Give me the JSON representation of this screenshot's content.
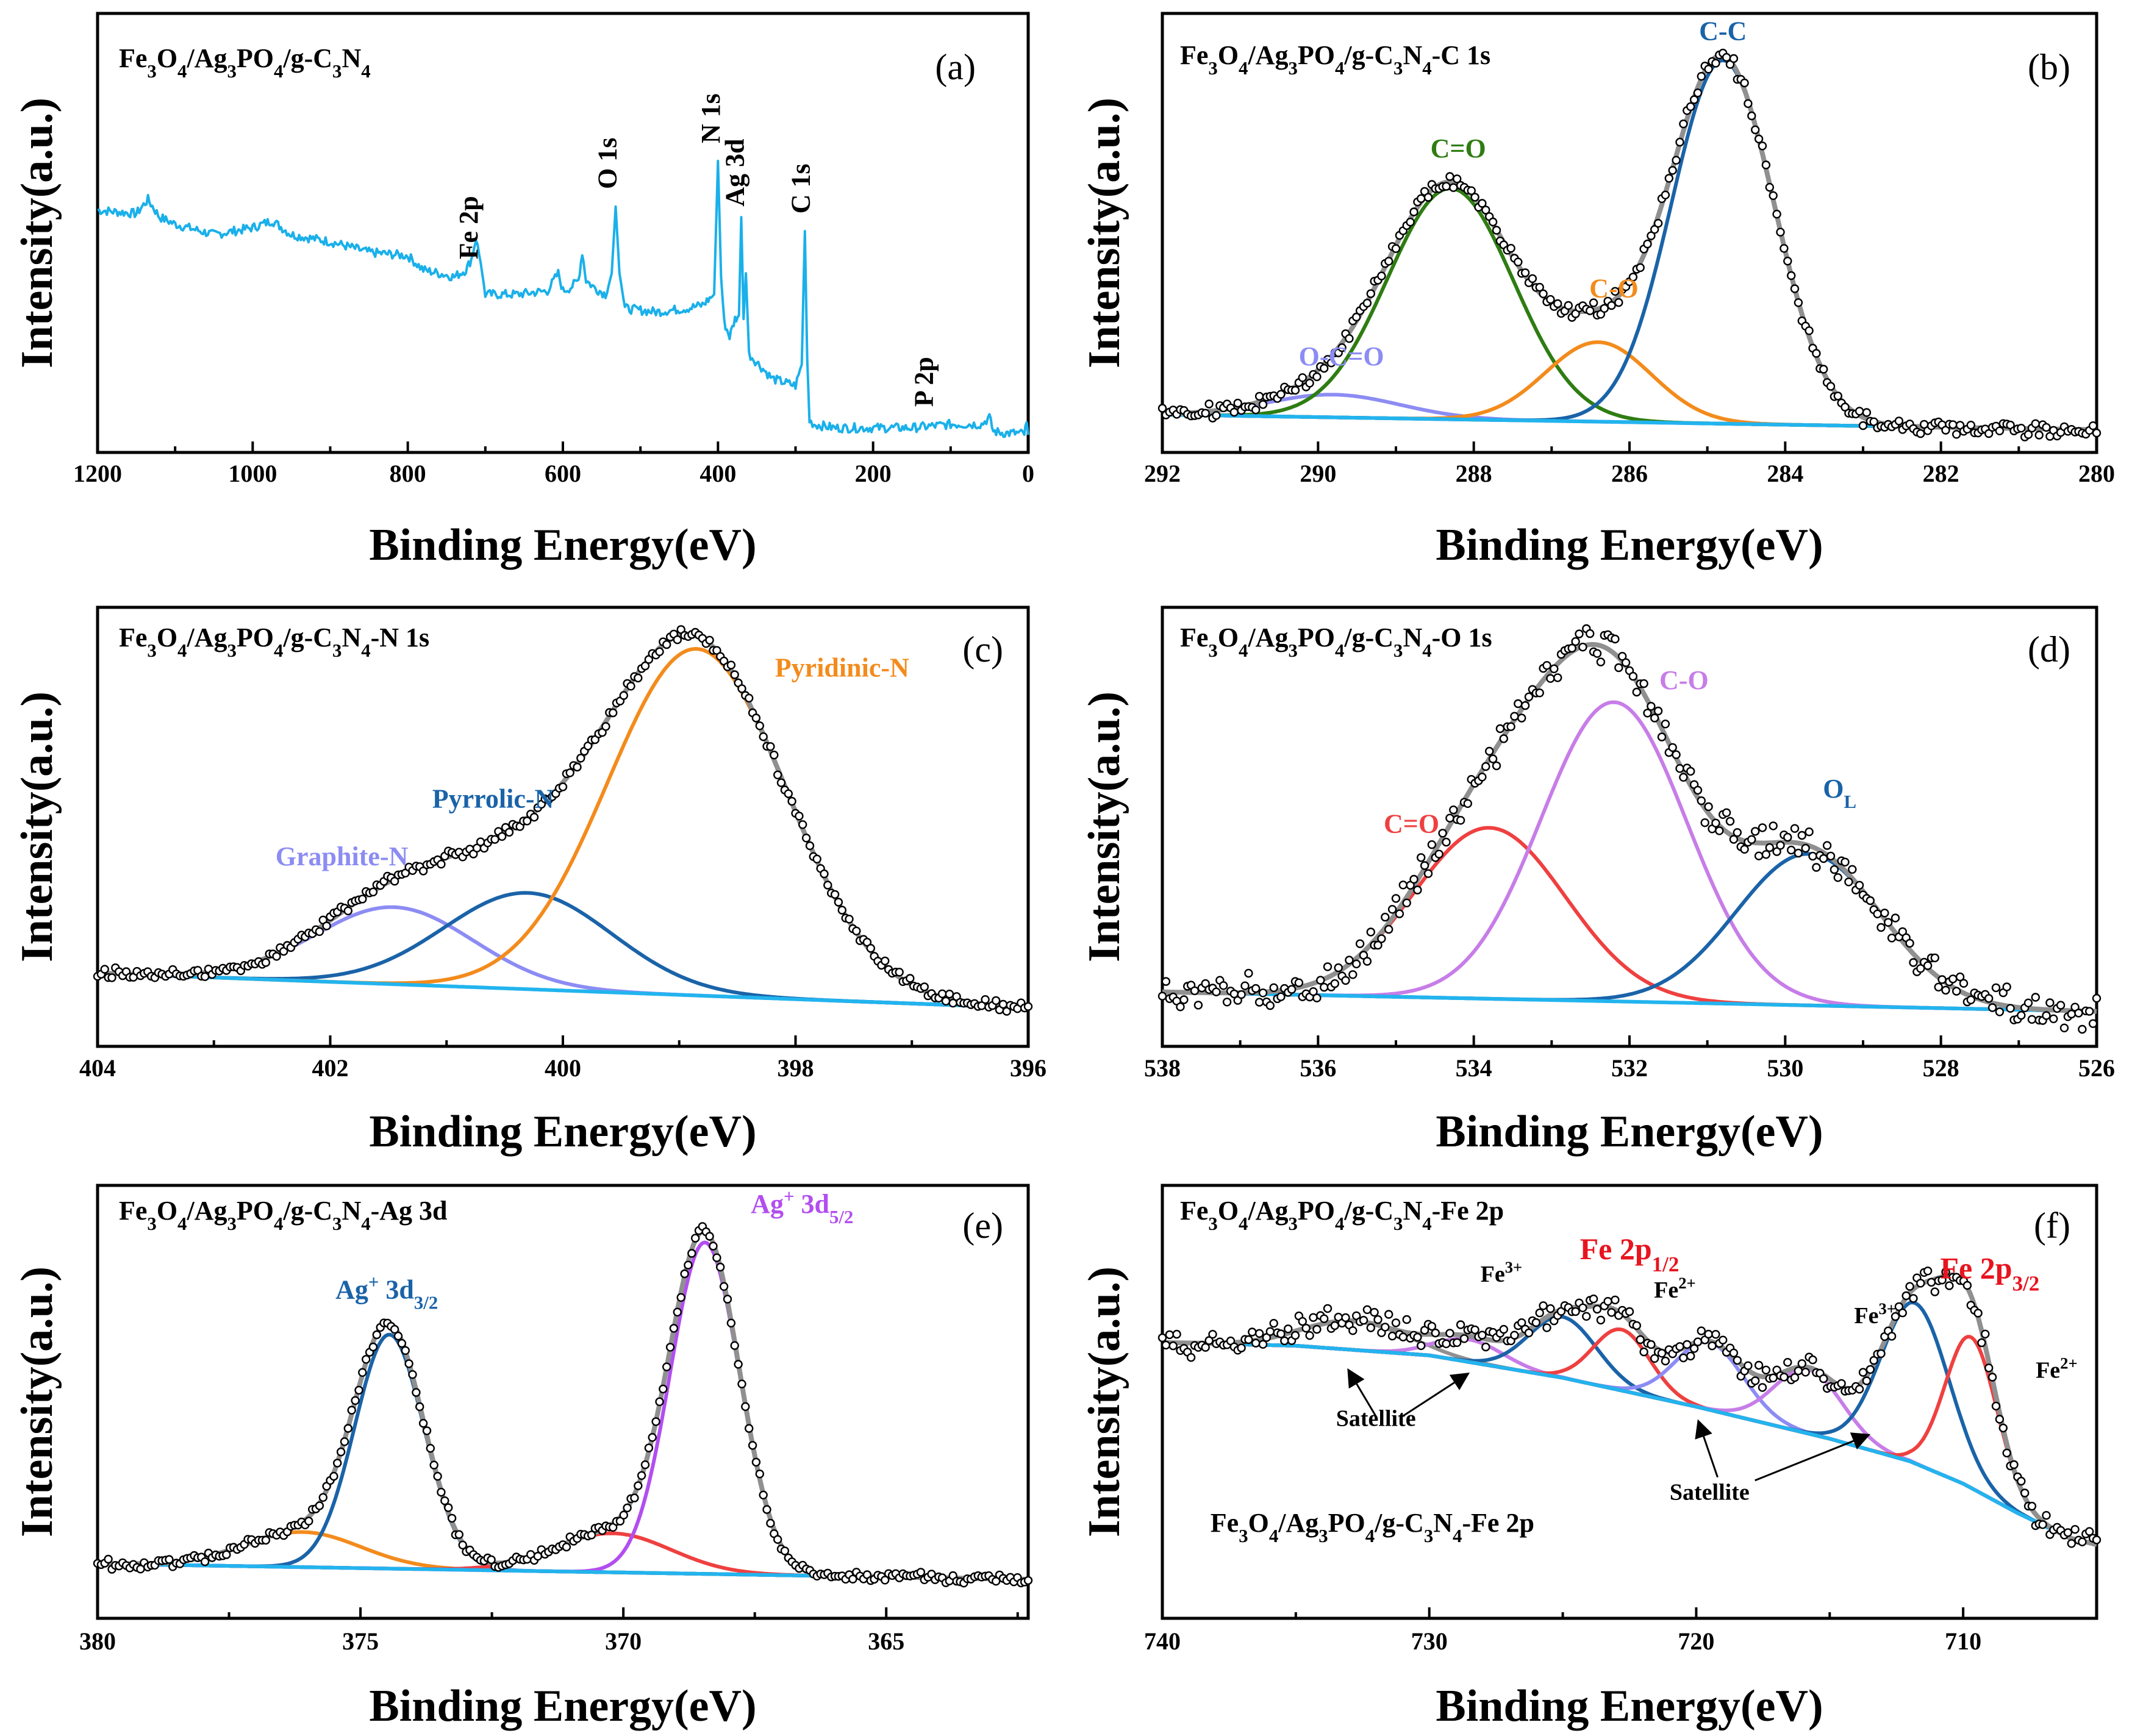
{
  "figure": {
    "x_axis_label": "Binding Energy(eV)",
    "y_axis_label": "Intensity(a.u.)"
  },
  "colors": {
    "survey": "#1ab0ea",
    "background": "#22b4ee",
    "envelope": "#909090",
    "green": "#2e7d12",
    "blue": "#1a63a8",
    "orange": "#f38b1c",
    "lavender": "#8c8cf4",
    "violet": "#c77de8",
    "red": "#ef4040",
    "magenta": "#b24ef0",
    "redtext": "#e8141e"
  },
  "chart_data": [
    {
      "type": "line",
      "panel_letter": "(a)",
      "title": {
        "parts": [
          [
            "Fe",
            ""
          ],
          [
            "3",
            "sub"
          ],
          [
            "O",
            ""
          ],
          [
            "4",
            "sub"
          ],
          [
            "/Ag",
            ""
          ],
          [
            "3",
            "sub"
          ],
          [
            "PO",
            ""
          ],
          [
            "4",
            "sub"
          ],
          [
            "/g-C",
            ""
          ],
          [
            "3",
            "sub"
          ],
          [
            "N",
            ""
          ],
          [
            "4",
            "sub"
          ]
        ]
      },
      "xlabel": "Binding Energy(eV)",
      "ylabel": "Intensity(a.u.)",
      "xlim": [
        1200,
        0
      ],
      "ylim": [
        0,
        100
      ],
      "reversed_x": true,
      "xticks": [
        1200,
        1000,
        800,
        600,
        400,
        200,
        0
      ],
      "series": [
        {
          "name": "Survey",
          "color_key": "survey",
          "role": "line",
          "x": [
            1200,
            1150,
            1135,
            1120,
            1100,
            1050,
            1000,
            975,
            950,
            900,
            850,
            800,
            780,
            760,
            740,
            725,
            718,
            712,
            706,
            700,
            660,
            620,
            606,
            600,
            590,
            580,
            575,
            570,
            560,
            545,
            537,
            532,
            527,
            520,
            480,
            440,
            420,
            405,
            400,
            396,
            392,
            385,
            378,
            373,
            370,
            367,
            364,
            360,
            330,
            300,
            292,
            288,
            285,
            282,
            276,
            250,
            200,
            150,
            100,
            60,
            50,
            45,
            30,
            15,
            5,
            2,
            0
          ],
          "y": [
            64,
            63,
            67,
            62,
            60,
            57,
            59,
            61,
            57,
            55,
            52,
            51,
            47,
            46,
            45,
            47,
            50,
            56,
            49,
            40,
            40,
            41,
            46,
            41,
            42,
            44,
            52,
            44,
            42,
            40,
            46,
            65,
            46,
            36,
            35,
            36,
            37,
            40,
            78,
            45,
            32,
            28,
            33,
            34,
            62,
            33,
            46,
            23,
            16,
            14,
            20,
            58,
            22,
            4,
            3,
            2,
            2,
            2,
            3,
            3,
            5,
            1,
            0.5,
            0.5,
            0.3,
            3,
            0
          ]
        }
      ],
      "annotations": [
        {
          "text": "Fe 2p",
          "x": 710,
          "y": 50,
          "rotate": -90,
          "color_key": "none"
        },
        {
          "text": "O 1s",
          "x": 531,
          "y": 70,
          "rotate": -90,
          "color_key": "none"
        },
        {
          "text": "N 1s",
          "x": 398,
          "y": 83,
          "rotate": -90,
          "color_key": "none"
        },
        {
          "text": "Ag 3d",
          "x": 367,
          "y": 65,
          "rotate": -90,
          "color_key": "none"
        },
        {
          "text": "C 1s",
          "x": 282,
          "y": 63,
          "rotate": -90,
          "color_key": "none"
        },
        {
          "text": "P 2p",
          "x": 123,
          "y": 8,
          "rotate": -90,
          "color_key": "none"
        }
      ]
    },
    {
      "type": "line",
      "panel_letter": "(b)",
      "title": {
        "parts": [
          [
            "Fe",
            ""
          ],
          [
            "3",
            "sub"
          ],
          [
            "O",
            ""
          ],
          [
            "4",
            "sub"
          ],
          [
            "/Ag",
            ""
          ],
          [
            "3",
            "sub"
          ],
          [
            "PO",
            ""
          ],
          [
            "4",
            "sub"
          ],
          [
            "/g-C",
            ""
          ],
          [
            "3",
            "sub"
          ],
          [
            "N",
            ""
          ],
          [
            "4",
            "sub"
          ],
          [
            "-C 1s",
            ""
          ]
        ]
      },
      "xlabel": "Binding Energy(eV)",
      "ylabel": "Intensity(a.u.)",
      "xlim": [
        292,
        280
      ],
      "ylim": [
        0,
        100
      ],
      "reversed_x": true,
      "xticks": [
        292,
        290,
        288,
        286,
        284,
        282,
        280
      ],
      "baseline": {
        "x0": 292,
        "y0": 4,
        "x1": 280,
        "y1": 0
      },
      "peaks": [
        {
          "name": "O-C=O",
          "center": 289.8,
          "fwhm": 2.0,
          "height": 6,
          "color_key": "lavender"
        },
        {
          "name": "C=O",
          "center": 288.3,
          "fwhm": 1.9,
          "height": 61,
          "color_key": "green"
        },
        {
          "name": "C-O",
          "center": 286.4,
          "fwhm": 1.6,
          "height": 21,
          "color_key": "orange"
        },
        {
          "name": "C-C",
          "center": 284.8,
          "fwhm": 1.55,
          "height": 96,
          "color_key": "blue"
        }
      ],
      "envelope_color_key": "envelope",
      "background_color_key": "background",
      "scatter_noise": 1.6,
      "annotations": [
        {
          "text": "O-C=O",
          "x": 289.7,
          "y": 17,
          "color_key": "lavender"
        },
        {
          "text": "C=O",
          "x": 288.2,
          "y": 72,
          "color_key": "green"
        },
        {
          "text": "C-O",
          "x": 286.2,
          "y": 35,
          "color_key": "orange"
        },
        {
          "text": "C-C",
          "x": 284.8,
          "y": 103,
          "color_key": "blue"
        }
      ]
    },
    {
      "type": "line",
      "panel_letter": "(c)",
      "title": {
        "parts": [
          [
            "Fe",
            ""
          ],
          [
            "3",
            "sub"
          ],
          [
            "O",
            ""
          ],
          [
            "4",
            "sub"
          ],
          [
            "/Ag",
            ""
          ],
          [
            "3",
            "sub"
          ],
          [
            "PO",
            ""
          ],
          [
            "4",
            "sub"
          ],
          [
            "/g-C",
            ""
          ],
          [
            "3",
            "sub"
          ],
          [
            "N",
            ""
          ],
          [
            "4",
            "sub"
          ],
          [
            "-N 1s",
            ""
          ]
        ]
      },
      "xlabel": "Binding Energy(eV)",
      "ylabel": "Intensity(a.u.)",
      "xlim": [
        404,
        396
      ],
      "ylim": [
        0,
        100
      ],
      "reversed_x": true,
      "xticks": [
        404,
        402,
        400,
        398,
        396
      ],
      "baseline": {
        "x0": 404,
        "y0": 9,
        "x1": 396,
        "y1": 0
      },
      "peaks": [
        {
          "name": "Graphite-N",
          "center": 401.45,
          "fwhm": 1.6,
          "height": 20,
          "color_key": "lavender"
        },
        {
          "name": "Pyrrolic-N",
          "center": 400.3,
          "fwhm": 1.7,
          "height": 25,
          "color_key": "blue"
        },
        {
          "name": "Pyridinic-N",
          "center": 398.85,
          "fwhm": 1.8,
          "height": 90,
          "color_key": "orange"
        }
      ],
      "envelope_color_key": "envelope",
      "background_color_key": "background",
      "scatter_noise": 1.2,
      "annotations": [
        {
          "text": "Graphite-N",
          "x": 401.9,
          "y": 37,
          "color_key": "lavender"
        },
        {
          "text": "Pyrrolic-N",
          "x": 400.6,
          "y": 52,
          "color_key": "blue"
        },
        {
          "text": "Pyridinic-N",
          "x": 397.6,
          "y": 86,
          "color_key": "orange"
        }
      ]
    },
    {
      "type": "line",
      "panel_letter": "(d)",
      "title": {
        "parts": [
          [
            "Fe",
            ""
          ],
          [
            "3",
            "sub"
          ],
          [
            "O",
            ""
          ],
          [
            "4",
            "sub"
          ],
          [
            "/Ag",
            ""
          ],
          [
            "3",
            "sub"
          ],
          [
            "PO",
            ""
          ],
          [
            "4",
            "sub"
          ],
          [
            "/g-C",
            ""
          ],
          [
            "3",
            "sub"
          ],
          [
            "N",
            ""
          ],
          [
            "4",
            "sub"
          ],
          [
            "-O 1s",
            ""
          ]
        ]
      },
      "xlabel": "Binding Energy(eV)",
      "ylabel": "Intensity(a.u.)",
      "xlim": [
        538,
        526
      ],
      "ylim": [
        0,
        100
      ],
      "reversed_x": true,
      "xticks": [
        538,
        536,
        534,
        532,
        530,
        528,
        526
      ],
      "baseline": {
        "x0": 538,
        "y0": 9,
        "x1": 526,
        "y1": 4
      },
      "peaks": [
        {
          "name": "C=O",
          "center": 533.8,
          "fwhm": 2.3,
          "height": 44,
          "color_key": "red"
        },
        {
          "name": "C-O",
          "center": 532.2,
          "fwhm": 2.2,
          "height": 77,
          "color_key": "violet"
        },
        {
          "name": "O_L",
          "center": 529.7,
          "fwhm": 2.2,
          "height": 39,
          "color_key": "blue"
        }
      ],
      "envelope_color_key": "envelope",
      "background_color_key": "background",
      "scatter_noise": 3.5,
      "annotations": [
        {
          "text": "C=O",
          "x": 534.8,
          "y": 50,
          "color_key": "red"
        },
        {
          "text": "C-O",
          "x": 531.3,
          "y": 87,
          "color_key": "violet"
        },
        {
          "text": "O",
          "sub": "L",
          "x": 529.3,
          "y": 59,
          "color_key": "blue"
        }
      ]
    },
    {
      "type": "line",
      "panel_letter": "(e)",
      "title": {
        "parts": [
          [
            "Fe",
            ""
          ],
          [
            "3",
            "sub"
          ],
          [
            "O",
            ""
          ],
          [
            "4",
            "sub"
          ],
          [
            "/Ag",
            ""
          ],
          [
            "3",
            "sub"
          ],
          [
            "PO",
            ""
          ],
          [
            "4",
            "sub"
          ],
          [
            "/g-C",
            ""
          ],
          [
            "3",
            "sub"
          ],
          [
            "N",
            ""
          ],
          [
            "4",
            "sub"
          ],
          [
            "-Ag 3d",
            ""
          ]
        ]
      },
      "xlabel": "Binding Energy(eV)",
      "ylabel": "Intensity(a.u.)",
      "xlim": [
        380,
        362.3
      ],
      "ylim": [
        0,
        100
      ],
      "reversed_x": true,
      "xticks": [
        380,
        375,
        370,
        365
      ],
      "baseline": {
        "x0": 380,
        "y0": 7,
        "x1": 362.3,
        "y1": 3
      },
      "peaks": [
        {
          "name": "orange-375",
          "center": 376.1,
          "fwhm": 2.6,
          "height": 9,
          "color_key": "orange"
        },
        {
          "name": "Ag+ 3d3/2",
          "center": 374.45,
          "fwhm": 1.55,
          "height": 60,
          "color_key": "blue"
        },
        {
          "name": "red-370",
          "center": 370.2,
          "fwhm": 2.6,
          "height": 10,
          "color_key": "red"
        },
        {
          "name": "Ag+ 3d5/2",
          "center": 368.45,
          "fwhm": 1.55,
          "height": 85,
          "color_key": "magenta"
        }
      ],
      "envelope_color_key": "envelope",
      "background_color_key": "background",
      "scatter_noise": 1.0,
      "annotations": [
        {
          "text": "Ag",
          "sup": "+",
          "text2": " 3d",
          "sub": "3/2",
          "x": 374.5,
          "y": 75,
          "color_key": "blue"
        },
        {
          "text": "Ag",
          "sup": "+",
          "text2": " 3d",
          "sub": "5/2",
          "x": 366.6,
          "y": 97,
          "color_key": "magenta"
        }
      ]
    },
    {
      "type": "line",
      "panel_letter": "(f)",
      "title": {
        "parts": [
          [
            "Fe",
            ""
          ],
          [
            "3",
            "sub"
          ],
          [
            "O",
            ""
          ],
          [
            "4",
            "sub"
          ],
          [
            "/Ag",
            ""
          ],
          [
            "3",
            "sub"
          ],
          [
            "PO",
            ""
          ],
          [
            "4",
            "sub"
          ],
          [
            "/g-C",
            ""
          ],
          [
            "3",
            "sub"
          ],
          [
            "N",
            ""
          ],
          [
            "4",
            "sub"
          ],
          [
            "-Fe 2p",
            ""
          ]
        ]
      },
      "xlabel": "Binding Energy(eV)",
      "ylabel": "Intensity(a.u.)",
      "xlim": [
        740,
        705
      ],
      "ylim": [
        0,
        100
      ],
      "reversed_x": true,
      "xticks": [
        740,
        730,
        720,
        710
      ],
      "background_curve": {
        "x": [
          740,
          735,
          730,
          725,
          720,
          715,
          712,
          710,
          708,
          706,
          705
        ],
        "y": [
          66,
          65,
          62,
          55,
          46,
          36,
          29,
          22,
          13,
          5,
          3
        ]
      },
      "peaks": [
        {
          "name": "Satellite-732",
          "center": 732.8,
          "fwhm": 4.5,
          "height": 9,
          "color_key": "envelope"
        },
        {
          "name": "Satellite-729",
          "center": 728.5,
          "fwhm": 3.0,
          "height": 7,
          "color_key": "violet"
        },
        {
          "name": "Fe3+ 2p1/2",
          "center": 725.0,
          "fwhm": 3.0,
          "height": 19,
          "color_key": "blue"
        },
        {
          "name": "Fe2+ 2p1/2",
          "center": 722.8,
          "fwhm": 2.5,
          "height": 19,
          "color_key": "red"
        },
        {
          "name": "Satellite-719",
          "center": 719.5,
          "fwhm": 3.0,
          "height": 21,
          "color_key": "lavender"
        },
        {
          "name": "Satellite-716",
          "center": 715.8,
          "fwhm": 3.0,
          "height": 20,
          "color_key": "violet"
        },
        {
          "name": "Fe3+ 2p3/2",
          "center": 711.8,
          "fwhm": 3.0,
          "height": 50,
          "color_key": "blue"
        },
        {
          "name": "Fe2+ 2p3/2",
          "center": 709.7,
          "fwhm": 2.3,
          "height": 47,
          "color_key": "red"
        }
      ],
      "envelope_color_key": "envelope",
      "background_color_key": "background",
      "scatter_noise": 3.2,
      "annotations": [
        {
          "text": "Fe 2p",
          "sub": "1/2",
          "x": 722.5,
          "y": 92,
          "color_key": "redtext",
          "size": "big"
        },
        {
          "text": "Fe",
          "sup": "3+",
          "x": 727.3,
          "y": 85,
          "color_key": "none",
          "size": "small"
        },
        {
          "text": "Fe",
          "sup": "2+",
          "x": 720.8,
          "y": 80,
          "color_key": "none",
          "size": "small"
        },
        {
          "text": "Fe 2p",
          "sub": "3/2",
          "x": 709.0,
          "y": 86,
          "color_key": "redtext",
          "size": "big"
        },
        {
          "text": "Fe",
          "sup": "3+",
          "x": 713.3,
          "y": 72,
          "color_key": "none",
          "size": "small"
        },
        {
          "text": "Fe",
          "sup": "2+",
          "x": 706.5,
          "y": 55,
          "color_key": "none",
          "size": "small"
        },
        {
          "text": "Satellite",
          "x": 732.0,
          "y": 40,
          "color_key": "none",
          "size": "small"
        },
        {
          "text": "Satellite",
          "x": 719.5,
          "y": 17,
          "color_key": "none",
          "size": "small"
        },
        {
          "text": "Fe",
          "sub": "3",
          "text2": "O",
          "sub2": "4",
          "text3": "/Ag",
          "sub3": "3",
          "text4": "PO",
          "sub4": "4",
          "text5": "/g-C",
          "sub5": "3",
          "text6": "N",
          "sub6": "4",
          "text7": "-Fe 2p",
          "x": 738.2,
          "y": 7,
          "color_key": "none",
          "size": "title",
          "anchor": "start"
        }
      ],
      "arrows": [
        {
          "from": [
            732.0,
            43
          ],
          "to": [
            733.0,
            57
          ]
        },
        {
          "from": [
            731.0,
            43
          ],
          "to": [
            728.6,
            56
          ]
        },
        {
          "from": [
            719.2,
            24
          ],
          "to": [
            719.9,
            41
          ]
        },
        {
          "from": [
            717.8,
            23
          ],
          "to": [
            713.6,
            37
          ]
        }
      ]
    }
  ]
}
